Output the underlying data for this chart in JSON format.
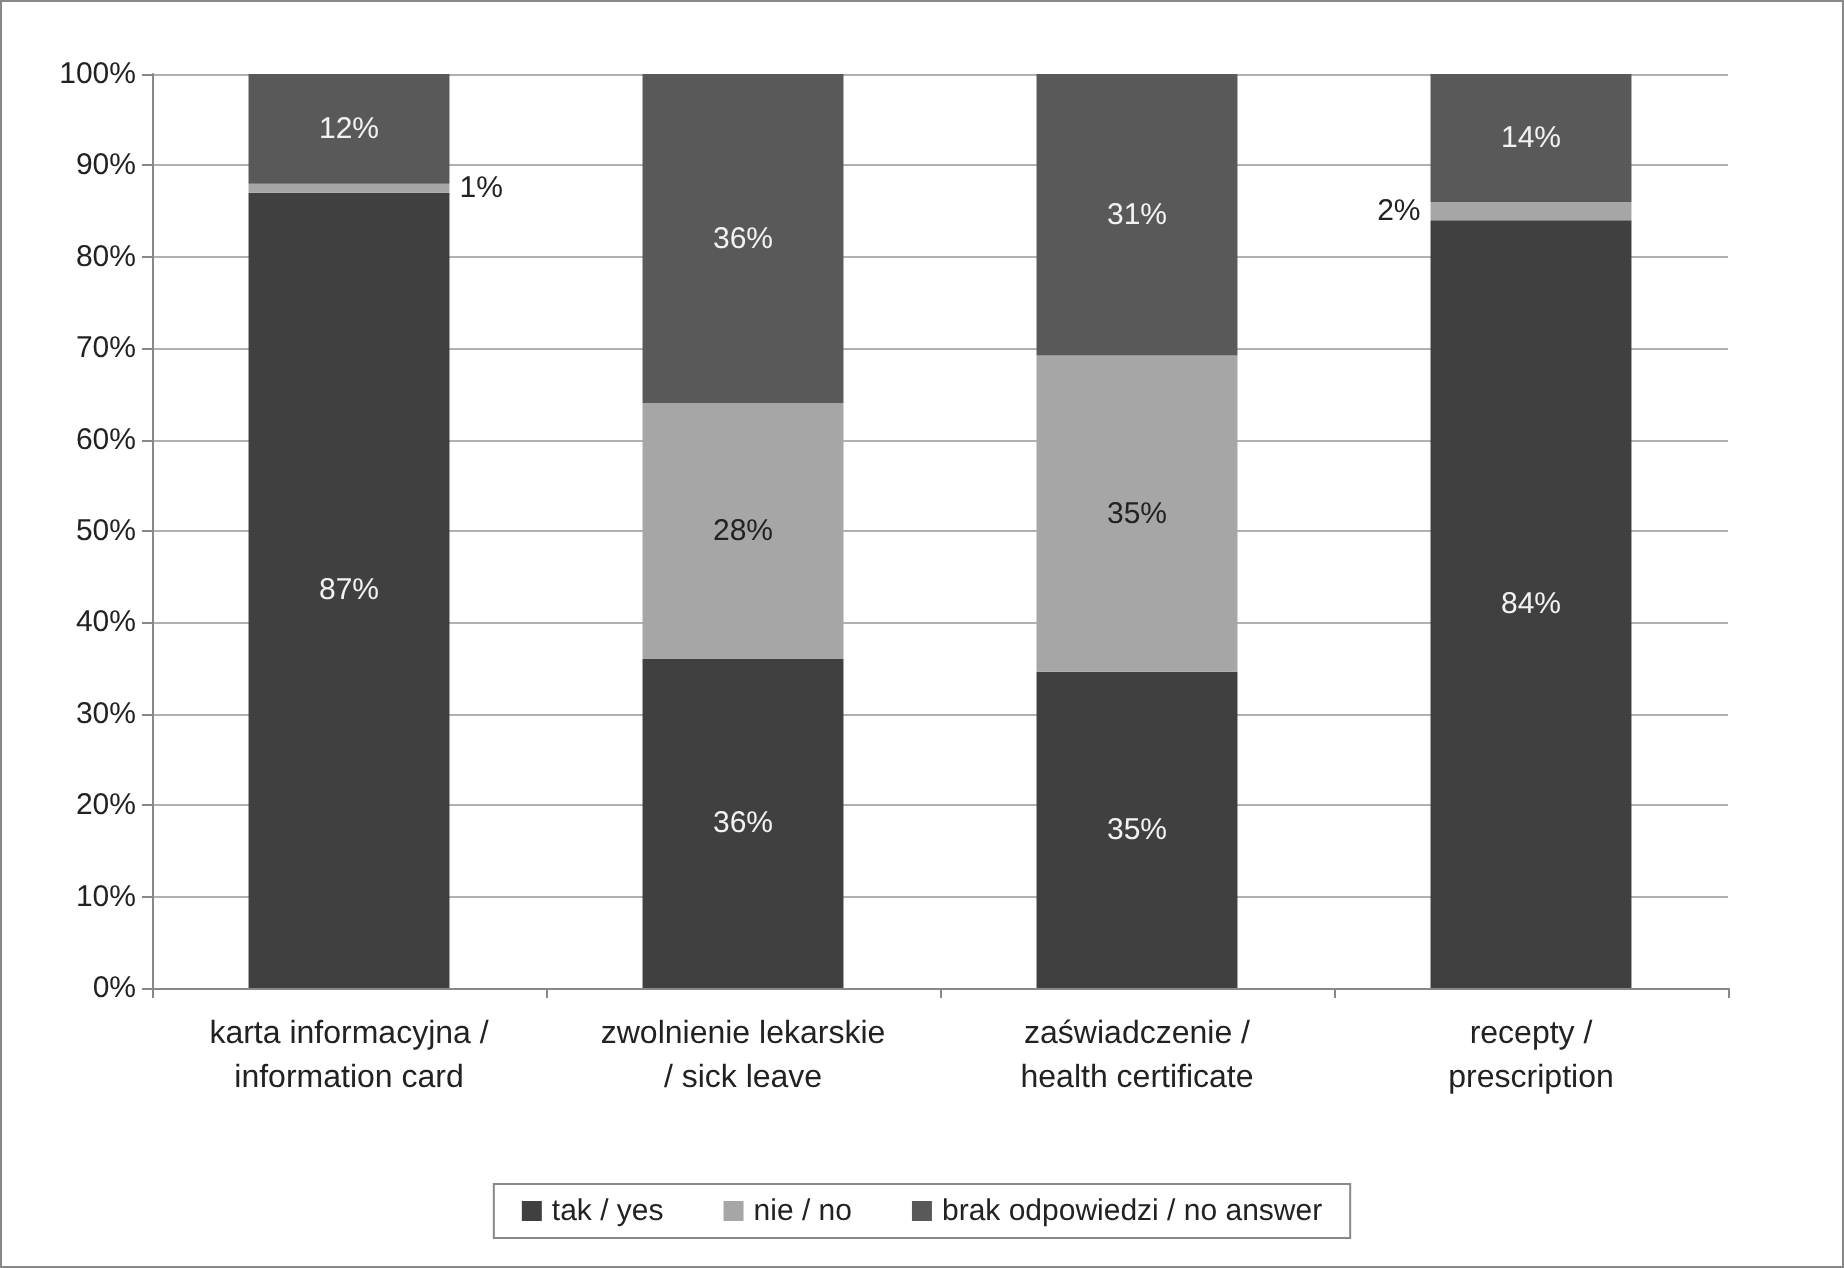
{
  "chart_data": {
    "type": "bar",
    "stacked": true,
    "categories": [
      "karta informacyjna /\ninformation card",
      "zwolnienie lekarskie\n/ sick leave",
      "zaświadczenie /\nhealth certificate",
      "recepty /\nprescription"
    ],
    "series": [
      {
        "name": "tak / yes",
        "color": "#404040",
        "values": [
          87,
          36,
          34.6,
          84
        ]
      },
      {
        "name": "nie / no",
        "color": "#a6a6a6",
        "values": [
          1,
          28,
          34.6,
          2
        ]
      },
      {
        "name": "brak odpowiedzi / no answer",
        "color": "#595959",
        "values": [
          12,
          36,
          30.8,
          14
        ]
      }
    ],
    "value_labels": [
      [
        "87%",
        "36%",
        "35%",
        "84%"
      ],
      [
        "1%",
        "28%",
        "35%",
        "2%"
      ],
      [
        "12%",
        "36%",
        "31%",
        "14%"
      ]
    ],
    "ylim": [
      0,
      100
    ],
    "yticks": [
      {
        "value": 0,
        "label": "0%"
      },
      {
        "value": 10,
        "label": "10%"
      },
      {
        "value": 20,
        "label": "20%"
      },
      {
        "value": 30,
        "label": "30%"
      },
      {
        "value": 40,
        "label": "40%"
      },
      {
        "value": 50,
        "label": "50%"
      },
      {
        "value": 60,
        "label": "60%"
      },
      {
        "value": 70,
        "label": "70%"
      },
      {
        "value": 80,
        "label": "80%"
      },
      {
        "value": 90,
        "label": "90%"
      },
      {
        "value": 100,
        "label": "100%"
      }
    ],
    "grid": "y",
    "legend": "bottom"
  }
}
